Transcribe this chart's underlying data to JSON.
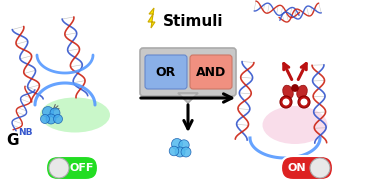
{
  "bg_color": "#ffffff",
  "title_text": "Stimuli",
  "or_label": "OR",
  "and_label": "AND",
  "or_color": "#8ab0e8",
  "and_color": "#f09080",
  "box_bg": "#c8c8c8",
  "off_bg": "#22dd22",
  "on_bg": "#dd2222",
  "off_text": "OFF",
  "on_text": "ON",
  "gnb_text": "G",
  "nb_text": "NB",
  "dna_blue": "#3355cc",
  "dna_red": "#cc2211",
  "dna_blue2": "#5599ff",
  "node_blue": "#44aaee",
  "scissors_red": "#bb1111",
  "glow_green": "#88ee88",
  "glow_pink": "#f0aacc",
  "lightning_yellow": "#ffee00",
  "lightning_outline": "#ccaa00"
}
